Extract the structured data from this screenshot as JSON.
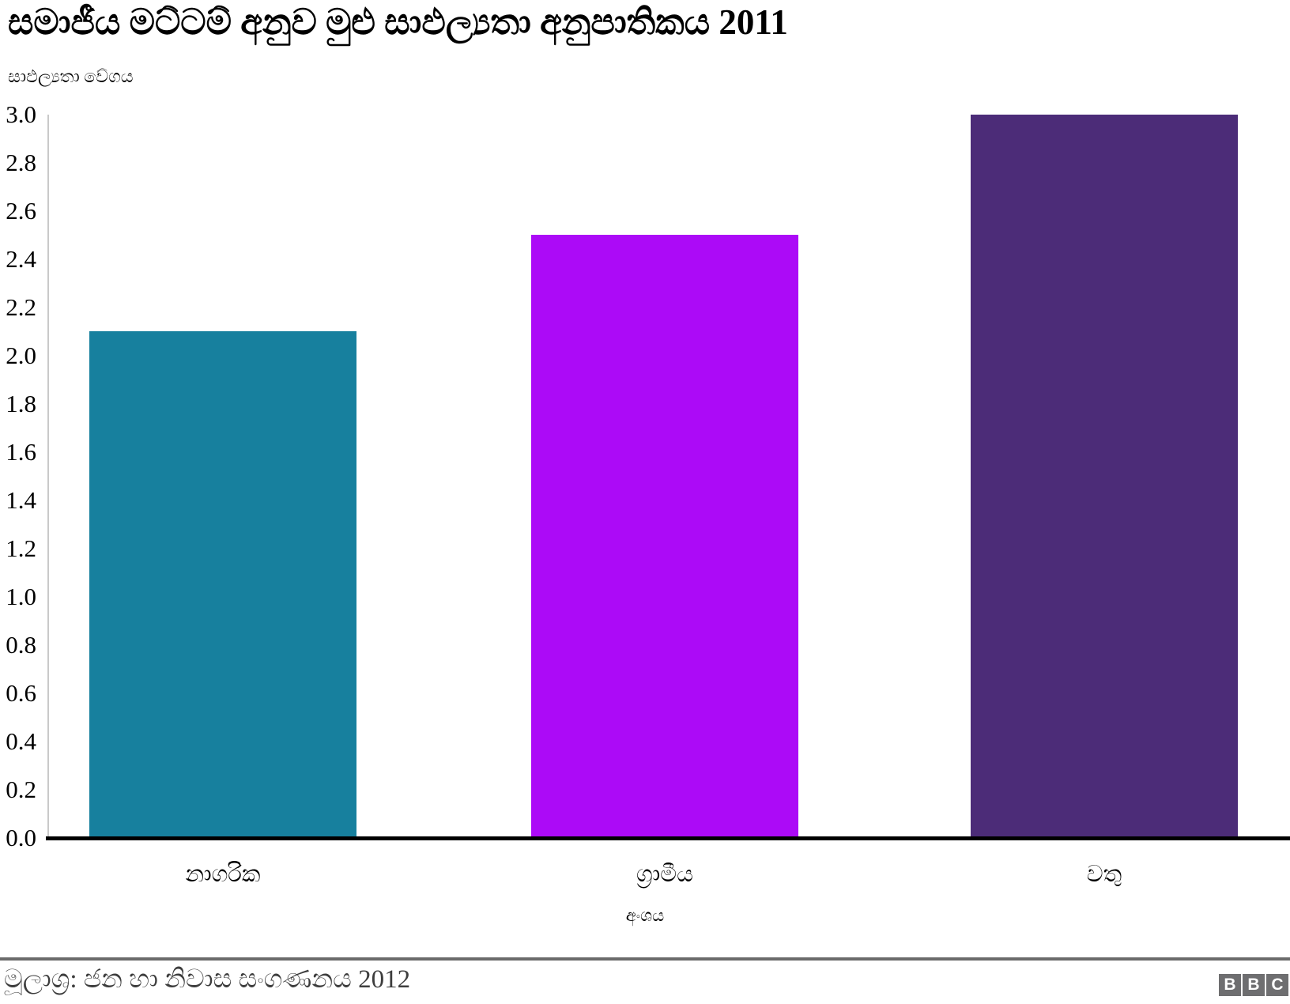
{
  "chart_data": {
    "type": "bar",
    "title": "සමාජීය මට්ටම් අනුව මුළු සාඵල්‍යතා අනුපාතිකය 2011",
    "ylabel": "සාඵල්‍යතා වේගය",
    "xlabel": "අංශය",
    "categories": [
      "නාගරික",
      "ග්‍රාමීය",
      "වතු"
    ],
    "values": [
      2.1,
      2.5,
      3.0
    ],
    "bar_colors": [
      "#17809E",
      "#AC0AF7",
      "#4C2C78"
    ],
    "ylim": [
      0.0,
      3.0
    ],
    "ytick_step": 0.2,
    "ytick_format_decimals": 1,
    "grid": false,
    "legend": false
  },
  "footer": {
    "source": "මූලාශ්‍ර: ජන හා නිවාස සංගණනය 2012",
    "bbc_logo_letters": [
      "B",
      "B",
      "C"
    ]
  },
  "colors": {
    "bar_teal": "#17809E",
    "bar_magenta": "#AC0AF7",
    "bar_dark_purple": "#4C2C78",
    "y_axis_line": "#C9C9C9",
    "x_axis_line": "#000000",
    "footer_divider": "#6B6B6B",
    "footer_text": "#3D3D3D",
    "bbc_logo_gray": "#6E6E70"
  }
}
